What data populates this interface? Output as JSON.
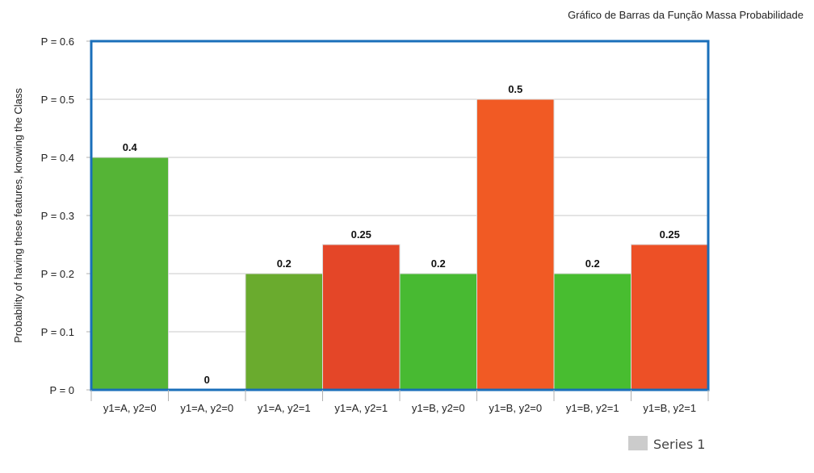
{
  "chart_data": {
    "type": "bar",
    "title": "Gráfico de Barras da Função Massa Probabilidade",
    "ylabel": "Probability of having these features, knowing the Class",
    "xlabel": "",
    "ylim": [
      0,
      0.6
    ],
    "yticks": [
      0,
      0.1,
      0.2,
      0.3,
      0.4,
      0.5,
      0.6
    ],
    "ytick_labels": [
      "P = 0",
      "P = 0.1",
      "P = 0.2",
      "P = 0.3",
      "P = 0.4",
      "P = 0.5",
      "P = 0.6"
    ],
    "grid": true,
    "categories": [
      "y1=A, y2=0",
      "y1=A, y2=0",
      "y1=A, y2=1",
      "y1=A, y2=1",
      "y1=B, y2=0",
      "y1=B, y2=0",
      "y1=B, y2=1",
      "y1=B, y2=1"
    ],
    "values": [
      0.4,
      0,
      0.2,
      0.25,
      0.2,
      0.5,
      0.2,
      0.25
    ],
    "data_labels": [
      "0.4",
      "0",
      "0.2",
      "0.25",
      "0.2",
      "0.5",
      "0.2",
      "0.25"
    ],
    "bar_colors": [
      "#55b436",
      "#4db832",
      "#6aab2e",
      "#e44628",
      "#48ba32",
      "#f15a24",
      "#48bd30",
      "#ed5026"
    ],
    "series": [
      {
        "name": "Series 1",
        "values": [
          0.4,
          0,
          0.2,
          0.25,
          0.2,
          0.5,
          0.2,
          0.25
        ]
      }
    ],
    "legend_position": "bottom-right",
    "legend_color": "#cccccc",
    "plot_border_color": "#1a6fba",
    "grid_color": "#c8c8c8"
  }
}
